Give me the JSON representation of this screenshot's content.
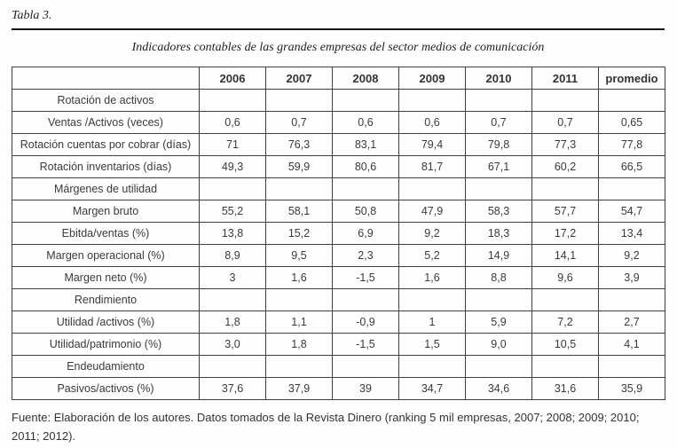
{
  "title": "Tabla 3.",
  "caption": "Indicadores contables de las grandes empresas del sector medios de comunicación",
  "table": {
    "columns": [
      "",
      "2006",
      "2007",
      "2008",
      "2009",
      "2010",
      "2011",
      "promedio"
    ],
    "rows": [
      {
        "label": "Rotación de activos",
        "values": [
          "",
          "",
          "",
          "",
          "",
          "",
          ""
        ]
      },
      {
        "label": "Ventas /Activos (veces)",
        "values": [
          "0,6",
          "0,7",
          "0,6",
          "0,6",
          "0,7",
          "0,7",
          "0,65"
        ]
      },
      {
        "label": "Rotación cuentas por cobrar (días)",
        "values": [
          "71",
          "76,3",
          "83,1",
          "79,4",
          "79,8",
          "77,3",
          "77,8"
        ]
      },
      {
        "label": "Rotación inventarios (días)",
        "values": [
          "49,3",
          "59,9",
          "80,6",
          "81,7",
          "67,1",
          "60,2",
          "66,5"
        ]
      },
      {
        "label": "Márgenes de utilidad",
        "values": [
          "",
          "",
          "",
          "",
          "",
          "",
          ""
        ]
      },
      {
        "label": "Margen bruto",
        "values": [
          "55,2",
          "58,1",
          "50,8",
          "47,9",
          "58,3",
          "57,7",
          "54,7"
        ]
      },
      {
        "label": "Ebitda/ventas (%)",
        "values": [
          "13,8",
          "15,2",
          "6,9",
          "9,2",
          "18,3",
          "17,2",
          "13,4"
        ]
      },
      {
        "label": "Margen operacional (%)",
        "values": [
          "8,9",
          "9,5",
          "2,3",
          "5,2",
          "14,9",
          "14,1",
          "9,2"
        ]
      },
      {
        "label": "Margen neto (%)",
        "values": [
          "3",
          "1,6",
          "-1,5",
          "1,6",
          "8,8",
          "9,6",
          "3,9"
        ]
      },
      {
        "label": "Rendimiento",
        "values": [
          "",
          "",
          "",
          "",
          "",
          "",
          ""
        ]
      },
      {
        "label": "Utilidad /activos (%)",
        "values": [
          "1,8",
          "1,1",
          "-0,9",
          "1",
          "5,9",
          "7,2",
          "2,7"
        ]
      },
      {
        "label": "Utilidad/patrimonio (%)",
        "values": [
          "3,0",
          "1,8",
          "-1,5",
          "1,5",
          "9,0",
          "10,5",
          "4,1"
        ]
      },
      {
        "label": "Endeudamiento",
        "values": [
          "",
          "",
          "",
          "",
          "",
          "",
          ""
        ]
      },
      {
        "label": "Pasivos/activos (%)",
        "values": [
          "37,6",
          "37,9",
          "39",
          "34,7",
          "34,6",
          "31,6",
          "35,9"
        ]
      }
    ]
  },
  "footnote": "Fuente: Elaboración de los autores. Datos tomados de la Revista Dinero (ranking 5 mil empresas, 2007; 2008; 2009; 2010; 2011; 2012)."
}
